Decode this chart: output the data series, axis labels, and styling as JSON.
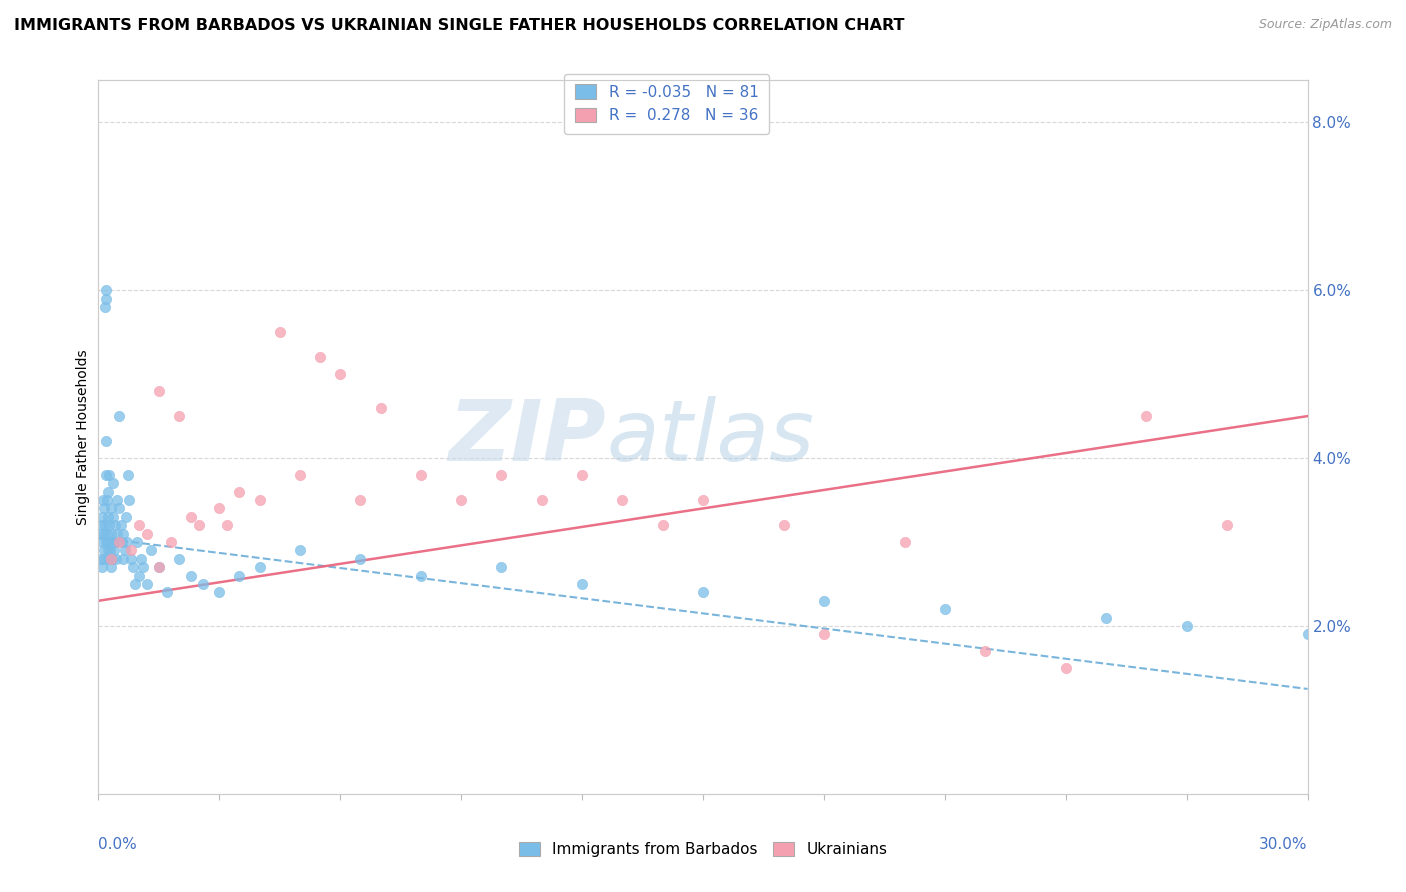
{
  "title": "IMMIGRANTS FROM BARBADOS VS UKRAINIAN SINGLE FATHER HOUSEHOLDS CORRELATION CHART",
  "source": "Source: ZipAtlas.com",
  "ylabel": "Single Father Households",
  "xmin": 0.0,
  "xmax": 30.0,
  "ymin": 0.0,
  "ymax": 8.5,
  "right_yticks": [
    2.0,
    4.0,
    6.0,
    8.0
  ],
  "blue_R": -0.035,
  "blue_N": 81,
  "pink_R": 0.278,
  "pink_N": 36,
  "blue_color": "#7abde8",
  "pink_color": "#f5a0b0",
  "blue_line_color": "#6aadd8",
  "pink_line_color": "#e8607a",
  "watermark_color": "#c5d8ea",
  "blue_trend_x0": 0.0,
  "blue_trend_y0": 3.05,
  "blue_trend_x1": 30.0,
  "blue_trend_y1": 1.25,
  "pink_trend_x0": 0.0,
  "pink_trend_y0": 2.3,
  "pink_trend_x1": 30.0,
  "pink_trend_y1": 4.5,
  "blue_scatter_x": [
    0.05,
    0.07,
    0.08,
    0.09,
    0.1,
    0.1,
    0.12,
    0.13,
    0.14,
    0.15,
    0.15,
    0.16,
    0.17,
    0.18,
    0.18,
    0.19,
    0.2,
    0.2,
    0.21,
    0.22,
    0.23,
    0.23,
    0.24,
    0.25,
    0.25,
    0.26,
    0.27,
    0.28,
    0.29,
    0.3,
    0.3,
    0.32,
    0.33,
    0.35,
    0.35,
    0.37,
    0.38,
    0.4,
    0.42,
    0.43,
    0.45,
    0.47,
    0.5,
    0.52,
    0.55,
    0.58,
    0.6,
    0.62,
    0.65,
    0.68,
    0.7,
    0.73,
    0.75,
    0.8,
    0.85,
    0.9,
    0.95,
    1.0,
    1.05,
    1.1,
    1.2,
    1.3,
    1.5,
    1.7,
    2.0,
    2.3,
    2.6,
    3.0,
    3.5,
    4.0,
    5.0,
    6.5,
    8.0,
    10.0,
    12.0,
    15.0,
    18.0,
    21.0,
    25.0,
    27.0,
    30.0
  ],
  "blue_scatter_y": [
    3.1,
    2.8,
    3.2,
    3.0,
    3.3,
    2.7,
    3.5,
    2.9,
    3.1,
    2.8,
    3.4,
    3.2,
    5.8,
    6.0,
    5.9,
    3.8,
    4.2,
    3.0,
    3.5,
    3.1,
    2.9,
    3.3,
    3.0,
    3.6,
    2.8,
    3.2,
    3.8,
    3.0,
    2.9,
    3.4,
    2.7,
    3.1,
    2.8,
    3.3,
    3.7,
    3.0,
    2.9,
    3.2,
    3.0,
    2.8,
    3.5,
    3.1,
    4.5,
    3.4,
    3.2,
    3.0,
    2.8,
    3.1,
    2.9,
    3.3,
    3.0,
    3.8,
    3.5,
    2.8,
    2.7,
    2.5,
    3.0,
    2.6,
    2.8,
    2.7,
    2.5,
    2.9,
    2.7,
    2.4,
    2.8,
    2.6,
    2.5,
    2.4,
    2.6,
    2.7,
    2.9,
    2.8,
    2.6,
    2.7,
    2.5,
    2.4,
    2.3,
    2.2,
    2.1,
    2.0,
    1.9
  ],
  "pink_scatter_x": [
    0.3,
    0.5,
    0.8,
    1.0,
    1.2,
    1.5,
    1.5,
    1.8,
    2.0,
    2.3,
    2.5,
    3.0,
    3.2,
    3.5,
    4.0,
    4.5,
    5.0,
    5.5,
    6.0,
    6.5,
    7.0,
    8.0,
    9.0,
    10.0,
    11.0,
    12.0,
    13.0,
    14.0,
    15.0,
    17.0,
    18.0,
    20.0,
    22.0,
    24.0,
    26.0,
    28.0
  ],
  "pink_scatter_y": [
    2.8,
    3.0,
    2.9,
    3.2,
    3.1,
    4.8,
    2.7,
    3.0,
    4.5,
    3.3,
    3.2,
    3.4,
    3.2,
    3.6,
    3.5,
    5.5,
    3.8,
    5.2,
    5.0,
    3.5,
    4.6,
    3.8,
    3.5,
    3.8,
    3.5,
    3.8,
    3.5,
    3.2,
    3.5,
    3.2,
    1.9,
    3.0,
    1.7,
    1.5,
    4.5,
    3.2
  ]
}
